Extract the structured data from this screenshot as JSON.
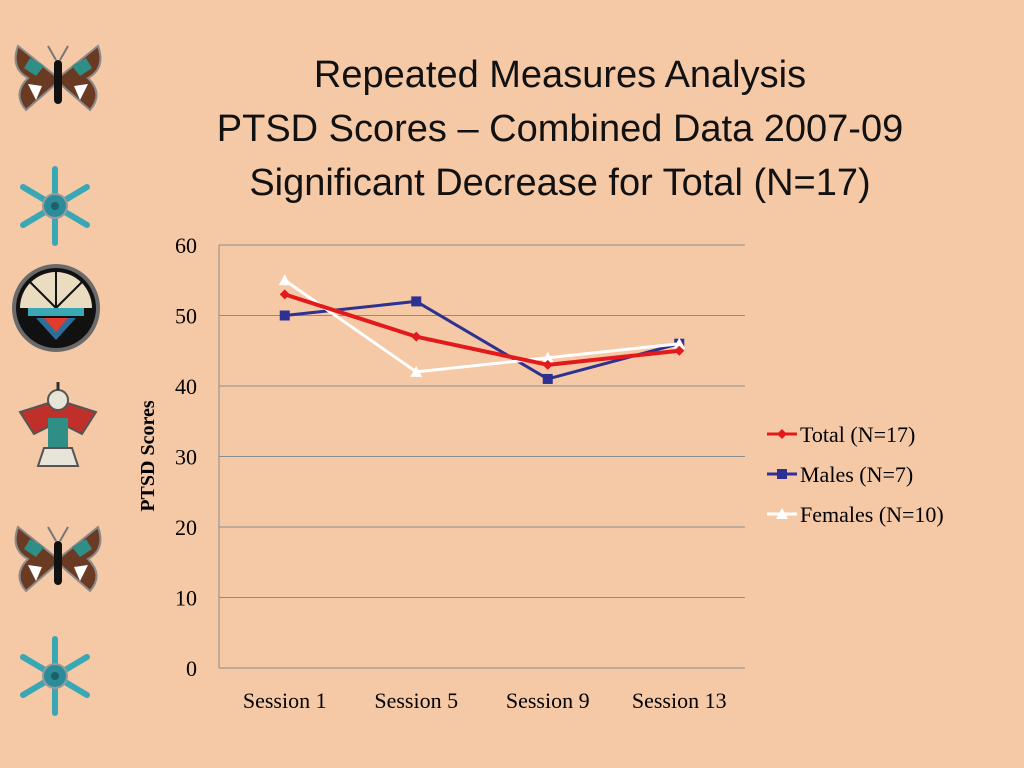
{
  "slide": {
    "title_lines": [
      "Repeated Measures Analysis",
      "PTSD Scores – Combined Data 2007-09",
      "Significant Decrease for Total (N=17)"
    ]
  },
  "decorations": [
    {
      "icon": "butterfly-icon"
    },
    {
      "icon": "snowflake-icon"
    },
    {
      "icon": "sun-face-icon"
    },
    {
      "icon": "thunderbird-icon"
    },
    {
      "icon": "butterfly-icon"
    },
    {
      "icon": "snowflake-icon"
    }
  ],
  "chart_data": {
    "type": "line",
    "title": "",
    "xlabel": "",
    "ylabel": "PTSD Scores",
    "categories": [
      "Session 1",
      "Session 5",
      "Session 9",
      "Session 13"
    ],
    "ylim": [
      0,
      60
    ],
    "yticks": [
      0,
      10,
      20,
      30,
      40,
      50,
      60
    ],
    "grid": true,
    "legend_position": "right",
    "series": [
      {
        "name": "Total (N=17)",
        "values": [
          53,
          47,
          43,
          45
        ],
        "color": "#e31a1c",
        "marker": "diamond"
      },
      {
        "name": "Males (N=7)",
        "values": [
          50,
          52,
          41,
          46
        ],
        "color": "#2e3192",
        "marker": "square"
      },
      {
        "name": "Females (N=10)",
        "values": [
          55,
          42,
          44,
          46
        ],
        "color": "#ffffff",
        "marker": "triangle"
      }
    ]
  }
}
